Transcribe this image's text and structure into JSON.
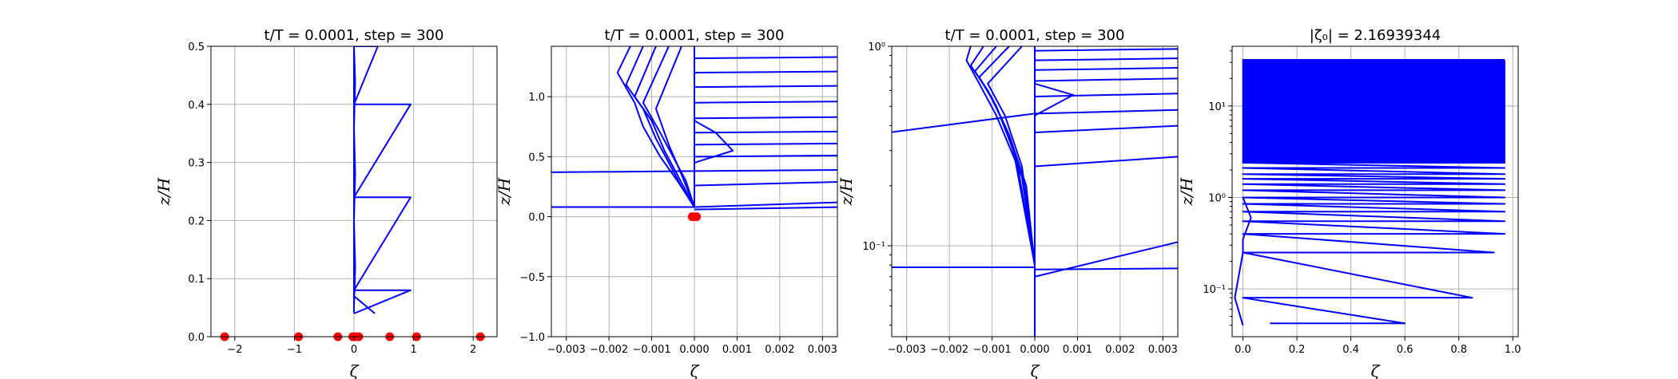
{
  "colors": {
    "line": "#0000ff",
    "marker": "#ff0000",
    "grid": "#b0b0b0"
  },
  "chart_data": [
    {
      "type": "line",
      "title": "t/T = 0.0001, step = 300",
      "xlabel": "ζ",
      "ylabel": "z/H",
      "yscale": "linear",
      "xlim": [
        -2.4,
        2.4
      ],
      "ylim": [
        0.0,
        0.5
      ],
      "xticks": [
        -2,
        -1,
        0,
        1,
        2
      ],
      "xtick_labels": [
        "−2",
        "−1",
        "0",
        "1",
        "2"
      ],
      "yticks": [
        0.0,
        0.1,
        0.2,
        0.3,
        0.4,
        0.5
      ],
      "ytick_labels": [
        "0.0",
        "0.1",
        "0.2",
        "0.3",
        "0.4",
        "0.5"
      ],
      "grid": true,
      "series": [
        {
          "x": [
            0,
            0.0,
            0.0
          ],
          "y": [
            0.04,
            0.5,
            0.5
          ]
        },
        {
          "x": [
            0.0,
            0.95,
            0.0,
            0.95,
            0.0,
            0.95,
            0.0,
            0.4,
            0.0
          ],
          "y": [
            0.04,
            0.08,
            0.08,
            0.24,
            0.24,
            0.4,
            0.4,
            0.5,
            0.5
          ]
        },
        {
          "x": [
            0.0,
            0.35
          ],
          "y": [
            0.07,
            0.04
          ]
        },
        {
          "x": [
            0.0,
            0.02,
            0.0,
            0.02,
            0.0,
            0.02,
            0.0
          ],
          "y": [
            0.05,
            0.12,
            0.2,
            0.28,
            0.36,
            0.44,
            0.5
          ]
        }
      ],
      "markers": {
        "x": [
          -2.17,
          -0.93,
          -0.27,
          -0.02,
          0.02,
          0.08,
          0.6,
          1.05,
          2.12
        ],
        "y": [
          0,
          0,
          0,
          0,
          0,
          0,
          0,
          0,
          0
        ]
      }
    },
    {
      "type": "line",
      "title": "t/T = 0.0001, step = 300",
      "xlabel": "ζ",
      "ylabel": "z/H",
      "yscale": "linear",
      "xlim": [
        -0.00335,
        0.00335
      ],
      "ylim": [
        -1.0,
        1.42
      ],
      "xticks": [
        -0.003,
        -0.002,
        -0.001,
        0.0,
        0.001,
        0.002,
        0.003
      ],
      "xtick_labels": [
        "−0.003",
        "−0.002",
        "−0.001",
        "0.000",
        "0.001",
        "0.002",
        "0.003"
      ],
      "yticks": [
        -1.0,
        -0.5,
        0.0,
        0.5,
        1.0
      ],
      "ytick_labels": [
        "−1.0",
        "−0.5",
        "0.0",
        "0.5",
        "1.0"
      ],
      "grid": true,
      "series": [
        {
          "x": [
            -0.0015,
            -0.0018,
            -0.0014,
            -0.0012,
            -0.0008,
            -0.0004,
            0.0
          ],
          "y": [
            1.42,
            1.2,
            0.95,
            0.75,
            0.5,
            0.3,
            0.08
          ]
        },
        {
          "x": [
            -0.0012,
            -0.0016,
            -0.0012,
            -0.0009,
            -0.0006,
            -0.0003,
            0.0
          ],
          "y": [
            1.42,
            1.1,
            0.9,
            0.65,
            0.45,
            0.25,
            0.08
          ]
        },
        {
          "x": [
            -0.0009,
            -0.0014,
            -0.001,
            -0.0007,
            -0.0004,
            0.0
          ],
          "y": [
            1.42,
            1.0,
            0.8,
            0.55,
            0.35,
            0.08
          ]
        },
        {
          "x": [
            -0.0006,
            -0.0012,
            -0.0008,
            -0.0005,
            -0.0002,
            0.0
          ],
          "y": [
            1.42,
            0.95,
            0.7,
            0.5,
            0.3,
            0.08
          ]
        },
        {
          "x": [
            -0.0003,
            -0.0009,
            -0.0006,
            -0.0003,
            0.0
          ],
          "y": [
            1.42,
            0.9,
            0.6,
            0.35,
            0.08
          ]
        },
        {
          "x": [
            0.0,
            0.0
          ],
          "y": [
            0.08,
            1.42
          ]
        },
        {
          "x": [
            0.0,
            0.0034
          ],
          "y": [
            1.32,
            1.33
          ]
        },
        {
          "x": [
            0.0,
            0.0034
          ],
          "y": [
            1.2,
            1.21
          ]
        },
        {
          "x": [
            0.0,
            0.0034
          ],
          "y": [
            1.08,
            1.09
          ]
        },
        {
          "x": [
            0.0,
            0.0034
          ],
          "y": [
            0.95,
            0.96
          ]
        },
        {
          "x": [
            0.0,
            0.0034
          ],
          "y": [
            0.82,
            0.83
          ]
        },
        {
          "x": [
            0.0,
            0.0034
          ],
          "y": [
            0.7,
            0.71
          ]
        },
        {
          "x": [
            0.0,
            0.0034
          ],
          "y": [
            0.6,
            0.61
          ]
        },
        {
          "x": [
            0.0,
            0.0034
          ],
          "y": [
            0.5,
            0.51
          ]
        },
        {
          "x": [
            0.0,
            0.0034
          ],
          "y": [
            0.38,
            0.39
          ]
        },
        {
          "x": [
            0.0,
            0.0034
          ],
          "y": [
            0.26,
            0.29
          ]
        },
        {
          "x": [
            0.0,
            0.0034
          ],
          "y": [
            0.08,
            0.12
          ]
        },
        {
          "x": [
            0.0,
            0.0034
          ],
          "y": [
            0.06,
            0.08
          ]
        },
        {
          "x": [
            -0.0034,
            0.0
          ],
          "y": [
            0.37,
            0.38
          ]
        },
        {
          "x": [
            -0.0034,
            0.0
          ],
          "y": [
            0.08,
            0.08
          ]
        },
        {
          "x": [
            0.0,
            0.0005,
            0.0009,
            0.0
          ],
          "y": [
            0.8,
            0.7,
            0.55,
            0.45
          ]
        }
      ],
      "markers": {
        "x": [
          -5e-05,
          5e-05
        ],
        "y": [
          0,
          0
        ]
      }
    },
    {
      "type": "line",
      "title": "t/T = 0.0001, step = 300",
      "xlabel": "ζ",
      "ylabel": "z/H",
      "yscale": "log",
      "xlim": [
        -0.00335,
        0.00335
      ],
      "ylim": [
        0.035,
        1.0
      ],
      "xticks": [
        -0.003,
        -0.002,
        -0.001,
        0.0,
        0.001,
        0.002,
        0.003
      ],
      "xtick_labels": [
        "−0.003",
        "−0.002",
        "−0.001",
        "0.000",
        "0.001",
        "0.002",
        "0.003"
      ],
      "yticks": [
        0.1,
        1.0
      ],
      "ytick_labels": [
        "10⁻¹",
        "10⁰"
      ],
      "grid": true,
      "series": [
        {
          "x": [
            0.0,
            0.0
          ],
          "y": [
            0.035,
            1.0
          ]
        },
        {
          "x": [
            -0.0015,
            -0.0016,
            -0.0013,
            -0.0009,
            -0.0004,
            0.0
          ],
          "y": [
            1.0,
            0.85,
            0.65,
            0.45,
            0.25,
            0.08
          ]
        },
        {
          "x": [
            -0.0012,
            -0.0015,
            -0.0011,
            -0.0007,
            -0.0003,
            0.0
          ],
          "y": [
            1.0,
            0.8,
            0.6,
            0.4,
            0.22,
            0.08
          ]
        },
        {
          "x": [
            -0.0009,
            -0.0014,
            -0.001,
            -0.0006,
            -0.0002,
            0.0
          ],
          "y": [
            1.0,
            0.75,
            0.55,
            0.36,
            0.2,
            0.08
          ]
        },
        {
          "x": [
            -0.0006,
            -0.0013,
            -0.0009,
            -0.0005,
            0.0
          ],
          "y": [
            1.0,
            0.7,
            0.5,
            0.3,
            0.08
          ]
        },
        {
          "x": [
            -0.0003,
            -0.0011,
            -0.0007,
            -0.0003,
            0.0
          ],
          "y": [
            1.0,
            0.65,
            0.45,
            0.25,
            0.08
          ]
        },
        {
          "x": [
            0.0,
            0.0034
          ],
          "y": [
            0.95,
            0.97
          ]
        },
        {
          "x": [
            0.0,
            0.0034
          ],
          "y": [
            0.85,
            0.87
          ]
        },
        {
          "x": [
            0.0,
            0.0034
          ],
          "y": [
            0.76,
            0.78
          ]
        },
        {
          "x": [
            0.0,
            0.0034
          ],
          "y": [
            0.67,
            0.69
          ]
        },
        {
          "x": [
            0.0,
            0.0034
          ],
          "y": [
            0.56,
            0.58
          ]
        },
        {
          "x": [
            0.0,
            0.0034
          ],
          "y": [
            0.46,
            0.48
          ]
        },
        {
          "x": [
            0.0,
            0.0034
          ],
          "y": [
            0.37,
            0.4
          ]
        },
        {
          "x": [
            0.0,
            0.0034
          ],
          "y": [
            0.25,
            0.28
          ]
        },
        {
          "x": [
            -0.0034,
            0.0
          ],
          "y": [
            0.37,
            0.46
          ]
        },
        {
          "x": [
            0.0,
            0.0034
          ],
          "y": [
            0.07,
            0.105
          ]
        },
        {
          "x": [
            -0.0034,
            0.0
          ],
          "y": [
            0.078,
            0.078
          ]
        },
        {
          "x": [
            0.0,
            0.0034
          ],
          "y": [
            0.076,
            0.077
          ]
        },
        {
          "x": [
            0.0,
            0.0009,
            0.0
          ],
          "y": [
            0.65,
            0.57,
            0.45
          ]
        }
      ],
      "markers": {
        "x": [],
        "y": []
      }
    },
    {
      "type": "line",
      "title": "|ζ₀| = 2.16939344",
      "xlabel": "ζ",
      "ylabel": "z/H",
      "yscale": "log",
      "xlim": [
        -0.04,
        1.02
      ],
      "ylim": [
        0.03,
        45.0
      ],
      "xticks": [
        0.0,
        0.2,
        0.4,
        0.6,
        0.8,
        1.0
      ],
      "xtick_labels": [
        "0.0",
        "0.2",
        "0.4",
        "0.6",
        "0.8",
        "1.0"
      ],
      "yticks": [
        0.1,
        1.0,
        10.0
      ],
      "ytick_labels": [
        "10⁻¹",
        "10⁰",
        "10¹"
      ],
      "grid": true,
      "series": [
        {
          "x": [
            0.1,
            0.6,
            0.0,
            0.85,
            0.0,
            0.93,
            0.0,
            0.97,
            0.0,
            0.97,
            0.0,
            0.97,
            0.0,
            0.97,
            0.0,
            0.97,
            0.0,
            0.97,
            0.0,
            0.97,
            0.0,
            0.97,
            0.0,
            0.97,
            0.0,
            0.97,
            0.0,
            0.97
          ],
          "y": [
            0.042,
            0.042,
            0.08,
            0.08,
            0.25,
            0.25,
            0.4,
            0.4,
            0.55,
            0.55,
            0.7,
            0.7,
            0.85,
            0.85,
            1.0,
            1.0,
            1.2,
            1.2,
            1.4,
            1.4,
            1.6,
            1.6,
            1.8,
            1.8,
            2.1,
            2.1,
            2.4,
            2.4
          ]
        },
        {
          "x": [
            0.0,
            -0.03,
            0.0,
            0.0,
            0.03,
            0.0
          ],
          "y": [
            0.04,
            0.08,
            0.25,
            0.35,
            0.6,
            1.0
          ]
        }
      ],
      "dense_fill": {
        "x0": 0.0,
        "x1": 0.97,
        "y0": 2.4,
        "y1": 32.0,
        "count": 90
      },
      "markers": {
        "x": [],
        "y": []
      }
    }
  ]
}
